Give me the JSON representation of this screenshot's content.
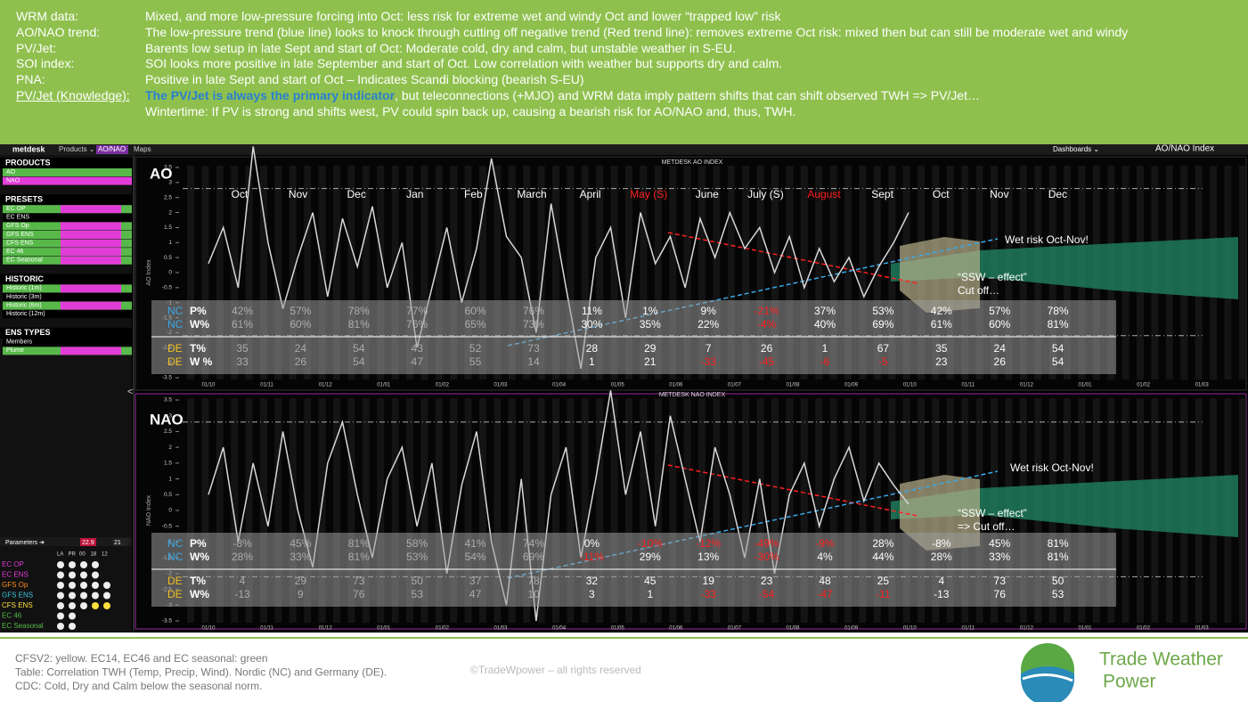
{
  "header": {
    "rows": [
      {
        "label": "WRM data:",
        "text": "Mixed, and more low-pressure forcing into Oct: less risk for extreme wet and windy Oct and lower “trapped low” risk"
      },
      {
        "label": "AO/NAO trend:",
        "text": "The low-pressure trend (blue line) looks to knock through cutting off negative trend (Red trend line): removes extreme Oct risk: mixed then but can still be moderate wet and windy"
      },
      {
        "label": "PV/Jet:",
        "text": "Barents low setup in late Sept and start of Oct: Moderate cold, dry and calm, but unstable weather in S-EU."
      },
      {
        "label": "SOI index:",
        "text": "SOI looks more positive in late September and start of Oct. Low correlation with weather but supports dry and calm."
      },
      {
        "label": "PNA:",
        "text": "Positive in late Sept and start of Oct –  Indicates Scandi blocking (bearish S-EU)"
      },
      {
        "label": "PV/Jet (Knowledge):",
        "emphasis": "The PV/Jet is always the primary indicator",
        "text": ", but teleconnections (+MJO) and WRM data imply pattern shifts that can shift observed TWH => PV/Jet…"
      },
      {
        "text": "Wintertime: If PV is strong and shifts west, PV could spin back up, causing a bearish risk for AO/NAO and, thus, TWH."
      }
    ]
  },
  "topbar": {
    "brand": "metdesk",
    "menu": "Products ⌄",
    "tab": "AO/NAO",
    "maps": "Maps",
    "dashboards": "Dashboards ⌄",
    "page": "AO/NAO Index"
  },
  "sidebar": {
    "sections": [
      {
        "title": "PRODUCTS",
        "items": [
          "AO",
          "NAO"
        ]
      },
      {
        "title": "PRESETS",
        "items": [
          "EC OP",
          "EC ENS",
          "GFS Op",
          "GFS ENS",
          "CFS ENS",
          "EC 46",
          "EC Seasonal"
        ]
      },
      {
        "title": "HISTORIC",
        "items": [
          "Historic (1m)",
          "Historic (3m)",
          "Historic (6m)",
          "Historic (12m)"
        ]
      },
      {
        "title": "ENS TYPES",
        "items": [
          "Members",
          "Plume"
        ]
      }
    ]
  },
  "parameters": {
    "title": "Parameters ➔",
    "dates": [
      "22.9",
      "21"
    ],
    "columns": [
      "LA",
      "PR",
      "00",
      "18",
      "12"
    ],
    "rows": [
      "EC OP",
      "EC ENS",
      "GFS Op",
      "GFS ENS",
      "CFS ENS",
      "EC 46",
      "EC Seasonal"
    ]
  },
  "ao_panel": {
    "title": "AO",
    "chart_title": "METDESK AO INDEX",
    "y_label": "AO Index",
    "ylim": [
      -3.5,
      3.5
    ],
    "yticks": [
      3.5,
      3,
      2.5,
      2,
      1.5,
      1,
      0.5,
      0,
      -0.5,
      -1,
      -1.5,
      -2,
      -2.5,
      -3,
      -3.5
    ],
    "months": [
      {
        "label": "Oct"
      },
      {
        "label": "Nov"
      },
      {
        "label": "Dec"
      },
      {
        "label": "Jan"
      },
      {
        "label": "Feb"
      },
      {
        "label": "March"
      },
      {
        "label": "April"
      },
      {
        "label": "May (S)",
        "color": "#ff2020"
      },
      {
        "label": "June"
      },
      {
        "label": "July (S)"
      },
      {
        "label": "August",
        "color": "#ff2020"
      },
      {
        "label": "Sept"
      },
      {
        "label": "Oct"
      },
      {
        "label": "Nov"
      },
      {
        "label": "Dec"
      }
    ],
    "dates": [
      "01/10",
      "01/11",
      "01/12",
      "01/01",
      "01/02",
      "01/03",
      "01/04",
      "01/05",
      "01/06",
      "01/07",
      "01/08",
      "01/09",
      "01/10",
      "01/11",
      "01/12",
      "01/01",
      "01/02",
      "01/03"
    ],
    "line": {
      "color": "#d8d8d8",
      "values": [
        0.3,
        1.5,
        -0.5,
        4.2,
        1.0,
        -1.2,
        0.5,
        2.0,
        -0.8,
        1.8,
        0.2,
        2.2,
        -0.5,
        1.0,
        -2.5,
        -0.5,
        1.5,
        -1.0,
        0.8,
        3.8,
        1.2,
        0.5,
        -2.0,
        2.3,
        -0.5,
        -3.2,
        0.5,
        1.5,
        -1.5,
        2.0,
        0.3,
        1.2,
        -0.5,
        1.8,
        0.5,
        2.0,
        0.8,
        1.5,
        0.0,
        1.2,
        -0.5,
        0.8,
        -0.3,
        0.5,
        -0.8,
        0.2,
        1.0,
        2.0
      ]
    },
    "annotations": [
      "Wet risk Oct-Nov!",
      "“SSW – effect”",
      "Cut off…"
    ],
    "table": {
      "rows": [
        {
          "region": "NC",
          "metric": "P%",
          "cells": [
            "42%",
            "57%",
            "78%",
            "77%",
            "60%",
            "76%",
            "11%",
            "1%",
            "9%",
            "-21%",
            "37%",
            "53%",
            "42%",
            "57%",
            "78%"
          ]
        },
        {
          "region": "NC",
          "metric": "W%",
          "cells": [
            "61%",
            "60%",
            "81%",
            "76%",
            "65%",
            "73%",
            "30%",
            "35%",
            "22%",
            "-4%",
            "40%",
            "69%",
            "61%",
            "60%",
            "81%"
          ]
        },
        {
          "region": "DE",
          "metric": "T%",
          "cells": [
            "35",
            "24",
            "54",
            "43",
            "52",
            "73",
            "28",
            "29",
            "7",
            "26",
            "1",
            "67",
            "35",
            "24",
            "54"
          ]
        },
        {
          "region": "DE",
          "metric": "W %",
          "cells": [
            "33",
            "26",
            "54",
            "47",
            "55",
            "14",
            "1",
            "21",
            "-33",
            "-45",
            "-6",
            "-5",
            "23",
            "26",
            "54"
          ]
        }
      ]
    }
  },
  "nao_panel": {
    "title": "NAO",
    "chart_title": "METDESK NAO INDEX",
    "y_label": "NAO Index",
    "ylim": [
      -3.5,
      3.5
    ],
    "yticks": [
      3.5,
      3,
      2.5,
      2,
      1.5,
      1,
      0.5,
      0,
      -0.5,
      -1,
      -1.5,
      -2,
      -2.5,
      -3,
      -3.5
    ],
    "dates": [
      "01/10",
      "01/11",
      "01/12",
      "01/01",
      "01/02",
      "01/03",
      "01/04",
      "01/05",
      "01/06",
      "01/07",
      "01/08",
      "01/09",
      "01/10",
      "01/11",
      "01/12",
      "01/01",
      "01/02",
      "01/03"
    ],
    "line": {
      "color": "#d8d8d8",
      "values": [
        0.5,
        2.0,
        -1.0,
        1.5,
        -0.5,
        2.5,
        0.0,
        -1.8,
        1.5,
        2.8,
        0.5,
        -1.5,
        1.0,
        2.0,
        -0.5,
        1.5,
        -2.0,
        0.8,
        2.5,
        -1.0,
        -3.0,
        1.0,
        -3.5,
        0.5,
        2.0,
        -1.5,
        1.0,
        3.8,
        0.5,
        2.5,
        -0.5,
        3.0,
        1.0,
        -1.0,
        2.0,
        0.5,
        -1.5,
        1.0,
        -2.0,
        0.5,
        1.5,
        -0.5,
        1.0,
        2.0,
        0.3,
        1.5,
        0.8,
        0.2
      ]
    },
    "annotations": [
      "Wet risk Oct-Nov!",
      "“SSW – effect”",
      "=> Cut off…"
    ],
    "table": {
      "rows": [
        {
          "region": "NC",
          "metric": "P%",
          "cells": [
            "-8%",
            "45%",
            "81%",
            "58%",
            "41%",
            "74%",
            "0%",
            "-10%",
            "-12%",
            "-49%",
            "-9%",
            "28%",
            "-8%",
            "45%",
            "81%"
          ]
        },
        {
          "region": "NC",
          "metric": "W%",
          "cells": [
            "28%",
            "33%",
            "81%",
            "53%",
            "54%",
            "69%",
            "-11%",
            "29%",
            "13%",
            "-30%",
            "4%",
            "44%",
            "28%",
            "33%",
            "81%"
          ]
        },
        {
          "region": "DE",
          "metric": "T%",
          "cells": [
            "4",
            "29",
            "73",
            "50",
            "37",
            "78",
            "32",
            "45",
            "19",
            "23",
            "48",
            "25",
            "4",
            "73",
            "50"
          ]
        },
        {
          "region": "DE",
          "metric": "W%",
          "cells": [
            "-13",
            "9",
            "76",
            "53",
            "47",
            "10",
            "3",
            "1",
            "-33",
            "-54",
            "-47",
            "-11",
            "-13",
            "76",
            "53"
          ]
        }
      ]
    }
  },
  "footer": {
    "lines": [
      "CFSV2: yellow. EC14, EC46 and EC seasonal: green",
      "Table: Correlation TWH (Temp, Precip, Wind). Nordic (NC) and Germany (DE).",
      "CDC: Cold, Dry and Calm below the seasonal norm."
    ],
    "copyright": "©TradeWpower – all rights reserved",
    "logo": [
      "Trade Weather",
      "Power"
    ]
  }
}
